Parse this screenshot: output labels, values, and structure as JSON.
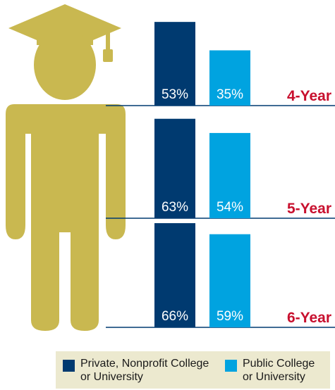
{
  "colors": {
    "private": "#003a70",
    "public": "#00a3e0",
    "figure": "#c9b850",
    "label": "#c8102e",
    "legend_bg": "#ece9cf"
  },
  "icons": {
    "figure": "graduate-person-icon"
  },
  "chart_data": {
    "type": "bar",
    "title": "",
    "xlabel": "",
    "ylabel": "",
    "categories": [
      "4-Year",
      "5-Year",
      "6-Year"
    ],
    "series": [
      {
        "name": "Private, Nonprofit College or University",
        "values": [
          53,
          63,
          66
        ],
        "labels": [
          "53%",
          "63%",
          "66%"
        ]
      },
      {
        "name": "Public College or University",
        "values": [
          35,
          54,
          59
        ],
        "labels": [
          "35%",
          "54%",
          "59%"
        ]
      }
    ],
    "ylim": [
      0,
      100
    ],
    "grid": false,
    "legend_position": "bottom"
  },
  "legend": {
    "items": [
      {
        "line1": "Private, Nonprofit College",
        "line2": "or University"
      },
      {
        "line1": "Public College",
        "line2": "or University"
      }
    ]
  }
}
